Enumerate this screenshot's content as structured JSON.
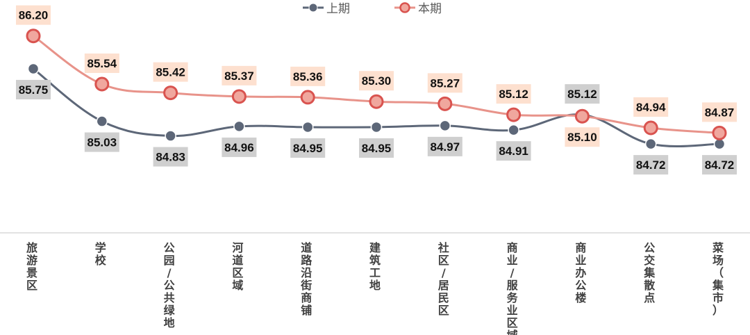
{
  "chart_data": {
    "type": "line",
    "title": "",
    "xlabel": "",
    "ylabel": "",
    "grid": false,
    "legend_position": "top-center",
    "categories": [
      "旅游景区",
      "学校",
      "公园/公共绿地",
      "河道区域",
      "道路沿街商铺",
      "建筑工地",
      "社区/居民区",
      "商业/服务业区域",
      "商业办公楼",
      "公交集散点",
      "菜场（集市）"
    ],
    "series": [
      {
        "name": "上期",
        "color": "#5d6778",
        "label_bg": "#cfcfcf",
        "label_position": "below",
        "values": [
          85.75,
          85.03,
          84.83,
          84.96,
          84.95,
          84.95,
          84.97,
          84.91,
          85.12,
          84.72,
          84.72
        ]
      },
      {
        "name": "本期",
        "color": "#e8938a",
        "marker_color": "#d9534f",
        "label_bg": "#fde0cf",
        "label_position": "above",
        "values": [
          86.2,
          85.54,
          85.42,
          85.37,
          85.36,
          85.3,
          85.27,
          85.12,
          85.1,
          84.94,
          84.87
        ]
      }
    ]
  }
}
